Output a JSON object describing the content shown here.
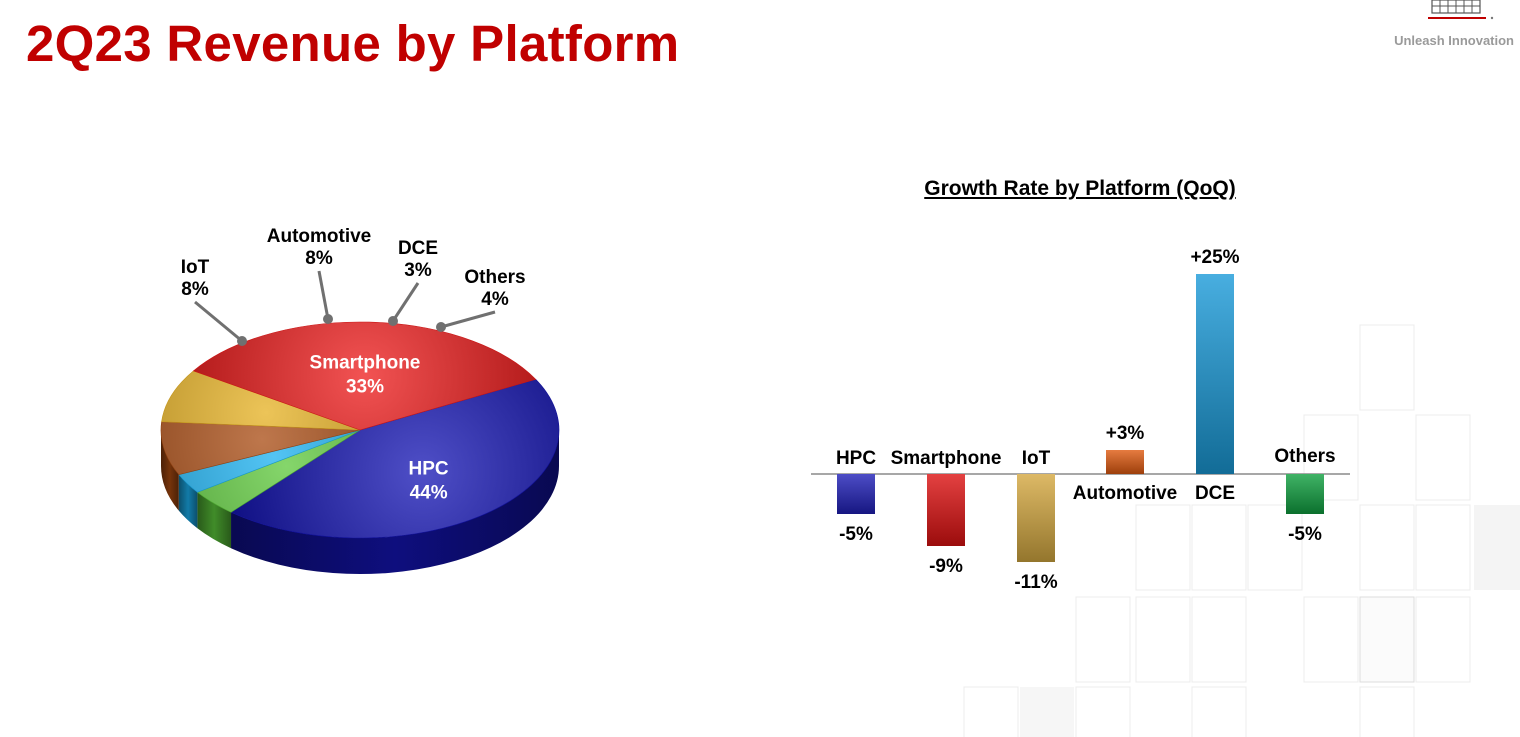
{
  "page": {
    "title": "2Q23 Revenue by Platform",
    "tagline": "Unleash Innovation",
    "accent_color": "#c00000"
  },
  "chart_data": [
    {
      "type": "pie",
      "title": "",
      "categories": [
        "HPC",
        "Others",
        "DCE",
        "Automotive",
        "IoT",
        "Smartphone"
      ],
      "values": [
        44,
        4,
        3,
        8,
        8,
        33
      ],
      "value_labels": [
        "44%",
        "4%",
        "3%",
        "8%",
        "8%",
        "33%"
      ],
      "colors": [
        "#1414b4",
        "#5cc83a",
        "#1ab0f0",
        "#a84a10",
        "#e6b020",
        "#ee1a1a"
      ],
      "label_placement": [
        "inside",
        "outside",
        "outside",
        "outside",
        "outside",
        "inside"
      ]
    },
    {
      "type": "bar",
      "title": "Growth Rate by Platform (QoQ)",
      "xlabel": "",
      "ylabel": "",
      "categories": [
        "HPC",
        "Smartphone",
        "IoT",
        "Automotive",
        "DCE",
        "Others"
      ],
      "values": [
        -5,
        -9,
        -11,
        3,
        25,
        -5
      ],
      "value_labels": [
        "-5%",
        "-9%",
        "-11%",
        "+3%",
        "+25%",
        "-5%"
      ],
      "colors": [
        "#2020b8",
        "#dd1111",
        "#d4a840",
        "#e05a10",
        "#1a9ad8",
        "#10a040"
      ],
      "unit": "%",
      "grid": false
    }
  ]
}
